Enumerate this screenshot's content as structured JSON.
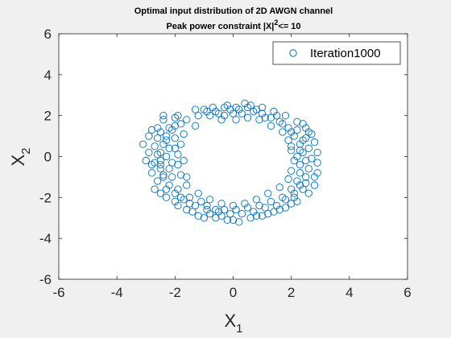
{
  "figure": {
    "title_line1": "Optimal input distribution of 2D AWGN channel",
    "title_line2_prefix": "Peak power constraint |X|",
    "title_line2_sup": "2",
    "title_line2_suffix": "<= 10"
  },
  "chart_data": {
    "type": "scatter",
    "title": "Optimal input distribution of 2D AWGN channel / Peak power constraint |X|^2<= 10",
    "xlabel_main": "X",
    "xlabel_sub": "1",
    "ylabel_main": "X",
    "ylabel_sub": "2",
    "xlim": [
      -6,
      6
    ],
    "ylim": [
      -6,
      6
    ],
    "xticks": [
      -6,
      -4,
      -2,
      0,
      2,
      4,
      6
    ],
    "yticks": [
      -6,
      -4,
      -2,
      0,
      2,
      4,
      6
    ],
    "grid": false,
    "legend_position": "top-right",
    "marker": "open-circle",
    "color": "#0072BD",
    "series": [
      {
        "name": "Iteration1000",
        "points": [
          [
            -2.0,
            1.9
          ],
          [
            -1.6,
            1.8
          ],
          [
            -1.2,
            2.0
          ],
          [
            -1.0,
            2.3
          ],
          [
            -0.6,
            2.2
          ],
          [
            -0.3,
            2.0
          ],
          [
            0.0,
            2.1
          ],
          [
            0.2,
            2.3
          ],
          [
            0.5,
            2.4
          ],
          [
            0.8,
            2.3
          ],
          [
            1.0,
            2.1
          ],
          [
            1.3,
            1.9
          ],
          [
            1.6,
            1.7
          ],
          [
            1.9,
            1.4
          ],
          [
            2.1,
            1.0
          ],
          [
            2.3,
            0.6
          ],
          [
            2.4,
            0.2
          ],
          [
            2.5,
            -0.2
          ],
          [
            2.6,
            -0.6
          ],
          [
            2.5,
            -1.0
          ],
          [
            2.3,
            -1.4
          ],
          [
            2.1,
            -1.8
          ],
          [
            1.8,
            -2.1
          ],
          [
            1.5,
            -2.4
          ],
          [
            1.1,
            -2.5
          ],
          [
            0.7,
            -2.7
          ],
          [
            0.3,
            -2.8
          ],
          [
            -0.1,
            -2.8
          ],
          [
            -0.5,
            -2.7
          ],
          [
            -0.9,
            -2.6
          ],
          [
            -1.3,
            -2.4
          ],
          [
            -1.7,
            -2.1
          ],
          [
            -2.0,
            -1.8
          ],
          [
            -2.2,
            -1.4
          ],
          [
            -2.4,
            -1.0
          ],
          [
            -2.5,
            -0.6
          ],
          [
            -2.5,
            -0.2
          ],
          [
            -2.5,
            0.2
          ],
          [
            -2.4,
            0.6
          ],
          [
            -2.3,
            1.0
          ],
          [
            -2.2,
            1.4
          ],
          [
            -2.6,
            0.1
          ],
          [
            -3.1,
            0.6
          ],
          [
            -2.8,
            -0.4
          ],
          [
            -2.9,
            1.0
          ],
          [
            -2.7,
            -1.6
          ],
          [
            -2.3,
            -2.0
          ],
          [
            -1.9,
            -2.4
          ],
          [
            -1.4,
            -2.7
          ],
          [
            -1.0,
            -3.0
          ],
          [
            -0.6,
            -3.0
          ],
          [
            -0.2,
            -3.1
          ],
          [
            0.2,
            -3.2
          ],
          [
            0.6,
            -3.0
          ],
          [
            1.0,
            -2.9
          ],
          [
            1.4,
            -2.7
          ],
          [
            1.8,
            -2.5
          ],
          [
            2.2,
            -2.2
          ],
          [
            2.6,
            -1.8
          ],
          [
            2.8,
            -1.4
          ],
          [
            2.9,
            -0.8
          ],
          [
            2.9,
            -0.3
          ],
          [
            2.9,
            0.2
          ],
          [
            2.8,
            0.7
          ],
          [
            2.7,
            1.1
          ],
          [
            2.5,
            1.4
          ],
          [
            2.2,
            1.7
          ],
          [
            1.8,
            2.0
          ],
          [
            1.4,
            2.2
          ],
          [
            1.0,
            2.4
          ],
          [
            0.6,
            2.5
          ],
          [
            0.1,
            2.4
          ],
          [
            -0.3,
            2.4
          ],
          [
            -0.8,
            2.0
          ],
          [
            -1.3,
            1.5
          ],
          [
            -1.7,
            1.1
          ],
          [
            -1.8,
            0.6
          ],
          [
            -1.9,
            0.1
          ],
          [
            -1.9,
            -0.4
          ],
          [
            -1.8,
            -0.9
          ],
          [
            -1.6,
            -1.4
          ],
          [
            -1.2,
            -1.8
          ],
          [
            -0.8,
            -2.1
          ],
          [
            -0.4,
            -2.3
          ],
          [
            0.0,
            -2.4
          ],
          [
            0.4,
            -2.3
          ],
          [
            0.8,
            -2.1
          ],
          [
            1.2,
            -1.8
          ],
          [
            1.6,
            -1.5
          ],
          [
            1.9,
            -1.1
          ],
          [
            2.0,
            -0.7
          ],
          [
            2.1,
            -0.2
          ],
          [
            2.0,
            0.3
          ],
          [
            1.9,
            0.8
          ],
          [
            1.7,
            1.2
          ],
          [
            1.3,
            1.5
          ],
          [
            0.9,
            1.8
          ],
          [
            0.5,
            1.9
          ],
          [
            0.1,
            1.8
          ],
          [
            -0.4,
            1.8
          ],
          [
            -2.4,
            -0.9
          ],
          [
            -2.6,
            -1.2
          ],
          [
            -2.8,
            -0.8
          ],
          [
            -2.2,
            0.4
          ],
          [
            -2.1,
            -0.3
          ],
          [
            -2.7,
            0.5
          ],
          [
            -2.0,
            0.9
          ],
          [
            -2.1,
            1.3
          ],
          [
            -1.8,
            1.6
          ],
          [
            -2.4,
            1.8
          ],
          [
            -2.6,
            1.4
          ],
          [
            -2.9,
            0.2
          ],
          [
            -3.0,
            -0.2
          ],
          [
            -2.3,
            -1.6
          ],
          [
            -1.8,
            -2.0
          ],
          [
            -1.5,
            -2.3
          ],
          [
            -0.9,
            -2.4
          ],
          [
            -0.3,
            -2.6
          ],
          [
            0.1,
            -2.6
          ],
          [
            0.5,
            -2.5
          ],
          [
            0.9,
            -2.4
          ],
          [
            1.3,
            -2.2
          ],
          [
            1.7,
            -2.0
          ],
          [
            2.0,
            -1.6
          ],
          [
            2.2,
            -1.2
          ],
          [
            2.3,
            -0.8
          ],
          [
            2.3,
            -0.4
          ],
          [
            2.4,
            0.8
          ],
          [
            2.6,
            0.4
          ],
          [
            2.7,
            -0.1
          ],
          [
            2.4,
            -1.6
          ],
          [
            2.0,
            -2.3
          ],
          [
            1.6,
            -2.6
          ],
          [
            1.2,
            -2.8
          ],
          [
            0.8,
            -2.9
          ],
          [
            -0.4,
            -2.9
          ],
          [
            -0.8,
            -2.8
          ],
          [
            -1.2,
            -2.9
          ],
          [
            -1.6,
            -2.6
          ],
          [
            -2.0,
            -2.2
          ],
          [
            -2.5,
            -1.8
          ],
          [
            -2.2,
            -0.6
          ],
          [
            -2.3,
            0.0
          ],
          [
            -2.6,
            0.9
          ],
          [
            -2.5,
            1.2
          ],
          [
            -2.0,
            1.5
          ],
          [
            1.5,
            2.0
          ],
          [
            1.1,
            1.9
          ],
          [
            0.7,
            2.2
          ],
          [
            0.3,
            2.1
          ],
          [
            -0.1,
            2.3
          ],
          [
            -0.5,
            2.1
          ],
          [
            -0.9,
            2.2
          ],
          [
            -1.3,
            2.3
          ],
          [
            2.0,
            1.2
          ],
          [
            2.2,
            1.3
          ],
          [
            1.7,
            1.6
          ],
          [
            2.5,
            0.9
          ],
          [
            2.2,
            0.0
          ],
          [
            2.8,
            -1.0
          ],
          [
            2.5,
            -1.3
          ],
          [
            2.1,
            -2.0
          ],
          [
            0.0,
            -3.1
          ],
          [
            -0.6,
            -2.6
          ],
          [
            -1.1,
            -2.2
          ],
          [
            -1.5,
            -2.0
          ],
          [
            -1.9,
            -1.6
          ],
          [
            -2.1,
            -1.0
          ],
          [
            -1.6,
            -1.0
          ],
          [
            -1.7,
            -0.2
          ],
          [
            -2.7,
            -0.3
          ],
          [
            -2.5,
            -0.4
          ],
          [
            -2.3,
            0.8
          ],
          [
            -2.0,
            0.4
          ],
          [
            -2.8,
            1.3
          ],
          [
            -2.4,
            2.0
          ],
          [
            -1.9,
            2.0
          ],
          [
            2.0,
            0.5
          ],
          [
            2.3,
            0.3
          ],
          [
            2.6,
            1.2
          ],
          [
            2.4,
            1.6
          ],
          [
            0.4,
            2.6
          ],
          [
            -0.2,
            2.5
          ],
          [
            -0.7,
            2.4
          ]
        ]
      }
    ]
  }
}
